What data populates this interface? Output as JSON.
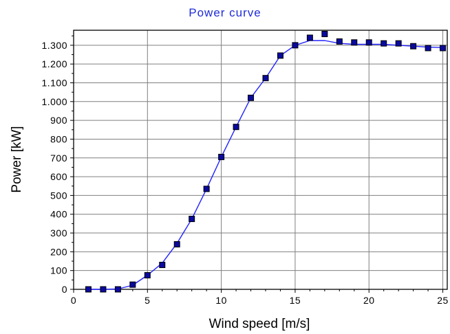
{
  "chart_data": {
    "type": "line",
    "title": "Power curve",
    "xlabel": "Wind speed [m/s]",
    "ylabel": "Power [kW]",
    "xlim": [
      0,
      25.3
    ],
    "ylim": [
      0,
      1380
    ],
    "x_ticks": [
      0,
      5,
      10,
      15,
      20,
      25
    ],
    "x_tick_labels": [
      "0",
      "5",
      "10",
      "15",
      "20",
      "25"
    ],
    "y_ticks": [
      0,
      100,
      200,
      300,
      400,
      500,
      600,
      700,
      800,
      900,
      1000,
      1100,
      1200,
      1300
    ],
    "y_tick_labels": [
      "0",
      "100",
      "200",
      "300",
      "400",
      "500",
      "600",
      "700",
      "800",
      "900",
      "1.000",
      "1.100",
      "1.200",
      "1.300"
    ],
    "grid": true,
    "series": [
      {
        "x": [
          1,
          2,
          3,
          4,
          5,
          6,
          7,
          8,
          9,
          10,
          11,
          12,
          13,
          14,
          15,
          16,
          17,
          18,
          19,
          20,
          21,
          22,
          23,
          24,
          25
        ],
        "y": [
          0,
          0,
          0,
          25,
          75,
          130,
          240,
          375,
          535,
          705,
          865,
          1020,
          1125,
          1245,
          1300,
          1340,
          1360,
          1320,
          1315,
          1315,
          1310,
          1310,
          1295,
          1285,
          1285
        ],
        "fitted": [
          0,
          0,
          2,
          22,
          75,
          140,
          245,
          375,
          535,
          705,
          865,
          1020,
          1125,
          1245,
          1300,
          1325,
          1325,
          1310,
          1305,
          1305,
          1305,
          1300,
          1295,
          1290,
          1288
        ]
      }
    ],
    "colors": {
      "title": "#1f2bd6",
      "line": "#2020ff",
      "marker_fill": "#0a0a9e",
      "marker_edge": "#000000",
      "grid": "#7f7f7f"
    }
  }
}
